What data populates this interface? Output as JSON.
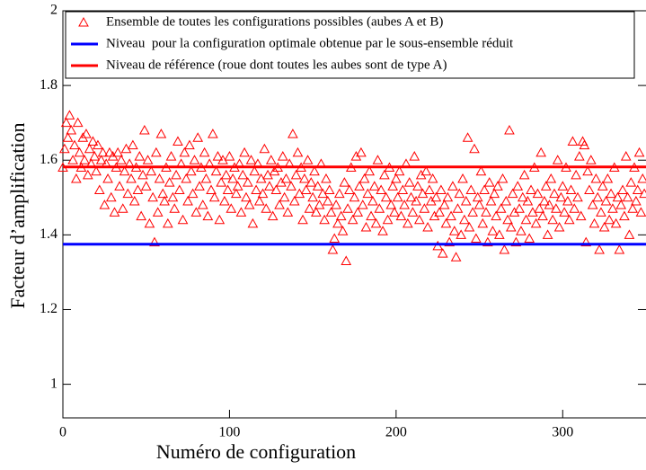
{
  "chart_data": {
    "type": "scatter",
    "xlabel": "Numéro de configuration",
    "ylabel": "Facteur d’amplification",
    "xlim": [
      0,
      350
    ],
    "xticks": [
      0,
      100,
      200,
      300
    ],
    "ylim": [
      0.91,
      2
    ],
    "yticks": [
      1,
      1.2,
      1.4,
      1.6,
      1.8,
      2
    ],
    "legend": "upper left",
    "series": [
      {
        "name": "Ensemble de toutes les configurations possibles (aubes A et B)",
        "color": "#ff0000",
        "marker": "triangle",
        "x": [
          0,
          1,
          2,
          3,
          4,
          5,
          6,
          7,
          8,
          9,
          10,
          11,
          12,
          13,
          14,
          15,
          16,
          17,
          18,
          19,
          20,
          21,
          22,
          23,
          24,
          25,
          26,
          27,
          28,
          29,
          30,
          31,
          32,
          33,
          34,
          35,
          36,
          37,
          38,
          39,
          40,
          41,
          42,
          43,
          44,
          45,
          46,
          47,
          48,
          49,
          50,
          51,
          52,
          53,
          54,
          55,
          56,
          57,
          58,
          59,
          60,
          61,
          62,
          63,
          64,
          65,
          66,
          67,
          68,
          69,
          70,
          71,
          72,
          73,
          74,
          75,
          76,
          77,
          78,
          79,
          80,
          81,
          82,
          83,
          84,
          85,
          86,
          87,
          88,
          89,
          90,
          91,
          92,
          93,
          94,
          95,
          96,
          97,
          98,
          99,
          100,
          101,
          102,
          103,
          104,
          105,
          106,
          107,
          108,
          109,
          110,
          111,
          112,
          113,
          114,
          115,
          116,
          117,
          118,
          119,
          120,
          121,
          122,
          123,
          124,
          125,
          126,
          127,
          128,
          129,
          130,
          131,
          132,
          133,
          134,
          135,
          136,
          137,
          138,
          139,
          140,
          141,
          142,
          143,
          144,
          145,
          146,
          147,
          148,
          149,
          150,
          151,
          152,
          153,
          154,
          155,
          156,
          157,
          158,
          159,
          160,
          161,
          162,
          163,
          164,
          165,
          166,
          167,
          168,
          169,
          170,
          171,
          172,
          173,
          174,
          175,
          176,
          177,
          178,
          179,
          180,
          181,
          182,
          183,
          184,
          185,
          186,
          187,
          188,
          189,
          190,
          191,
          192,
          193,
          194,
          195,
          196,
          197,
          198,
          199,
          200,
          201,
          202,
          203,
          204,
          205,
          206,
          207,
          208,
          209,
          210,
          211,
          212,
          213,
          214,
          215,
          216,
          217,
          218,
          219,
          220,
          221,
          222,
          223,
          224,
          225,
          226,
          227,
          228,
          229,
          230,
          231,
          232,
          233,
          234,
          235,
          236,
          237,
          238,
          239,
          240,
          241,
          242,
          243,
          244,
          245,
          246,
          247,
          248,
          249,
          250,
          251,
          252,
          253,
          254,
          255,
          256,
          257,
          258,
          259,
          260,
          261,
          262,
          263,
          264,
          265,
          266,
          267,
          268,
          269,
          270,
          271,
          272,
          273,
          274,
          275,
          276,
          277,
          278,
          279,
          280,
          281,
          282,
          283,
          284,
          285,
          286,
          287,
          288,
          289,
          290,
          291,
          292,
          293,
          294,
          295,
          296,
          297,
          298,
          299,
          300,
          301,
          302,
          303,
          304,
          305,
          306,
          307,
          308,
          309,
          310,
          311,
          312,
          313,
          314,
          315,
          316,
          317,
          318,
          319,
          320,
          321,
          322,
          323,
          324,
          325,
          326,
          327,
          328,
          329,
          330,
          331,
          332,
          333,
          334,
          335,
          336,
          337,
          338,
          339,
          340,
          341,
          342,
          343,
          344,
          345,
          346,
          347,
          348,
          349
        ],
        "values": [
          1.58,
          1.63,
          1.7,
          1.66,
          1.72,
          1.68,
          1.6,
          1.64,
          1.55,
          1.7,
          1.62,
          1.58,
          1.66,
          1.6,
          1.67,
          1.56,
          1.63,
          1.59,
          1.65,
          1.61,
          1.57,
          1.64,
          1.52,
          1.6,
          1.62,
          1.48,
          1.59,
          1.55,
          1.62,
          1.5,
          1.61,
          1.46,
          1.58,
          1.62,
          1.53,
          1.6,
          1.47,
          1.57,
          1.63,
          1.51,
          1.59,
          1.55,
          1.64,
          1.49,
          1.58,
          1.52,
          1.61,
          1.45,
          1.56,
          1.68,
          1.53,
          1.6,
          1.43,
          1.57,
          1.5,
          1.38,
          1.62,
          1.46,
          1.55,
          1.67,
          1.51,
          1.49,
          1.58,
          1.43,
          1.54,
          1.61,
          1.5,
          1.47,
          1.56,
          1.65,
          1.52,
          1.59,
          1.44,
          1.62,
          1.55,
          1.49,
          1.64,
          1.57,
          1.51,
          1.6,
          1.46,
          1.66,
          1.53,
          1.58,
          1.48,
          1.62,
          1.55,
          1.45,
          1.59,
          1.52,
          1.67,
          1.5,
          1.57,
          1.61,
          1.44,
          1.54,
          1.6,
          1.49,
          1.56,
          1.52,
          1.61,
          1.47,
          1.55,
          1.58,
          1.51,
          1.53,
          1.59,
          1.46,
          1.56,
          1.62,
          1.5,
          1.54,
          1.48,
          1.6,
          1.43,
          1.57,
          1.52,
          1.59,
          1.49,
          1.55,
          1.51,
          1.63,
          1.47,
          1.56,
          1.53,
          1.6,
          1.45,
          1.57,
          1.52,
          1.58,
          1.48,
          1.54,
          1.61,
          1.5,
          1.55,
          1.46,
          1.59,
          1.53,
          1.67,
          1.49,
          1.56,
          1.62,
          1.51,
          1.58,
          1.44,
          1.55,
          1.52,
          1.6,
          1.47,
          1.54,
          1.5,
          1.57,
          1.46,
          1.53,
          1.48,
          1.59,
          1.51,
          1.44,
          1.55,
          1.49,
          1.52,
          1.46,
          1.36,
          1.39,
          1.48,
          1.43,
          1.51,
          1.45,
          1.41,
          1.54,
          1.33,
          1.47,
          1.52,
          1.58,
          1.44,
          1.5,
          1.61,
          1.46,
          1.53,
          1.62,
          1.48,
          1.55,
          1.42,
          1.51,
          1.57,
          1.45,
          1.49,
          1.53,
          1.43,
          1.6,
          1.47,
          1.52,
          1.41,
          1.56,
          1.5,
          1.44,
          1.58,
          1.48,
          1.53,
          1.46,
          1.55,
          1.5,
          1.57,
          1.45,
          1.52,
          1.48,
          1.59,
          1.43,
          1.54,
          1.5,
          1.46,
          1.61,
          1.49,
          1.53,
          1.44,
          1.56,
          1.51,
          1.47,
          1.57,
          1.42,
          1.52,
          1.49,
          1.55,
          1.45,
          1.5,
          1.37,
          1.46,
          1.52,
          1.35,
          1.48,
          1.43,
          1.5,
          1.38,
          1.45,
          1.53,
          1.41,
          1.34,
          1.47,
          1.51,
          1.4,
          1.55,
          1.44,
          1.49,
          1.66,
          1.42,
          1.52,
          1.46,
          1.63,
          1.39,
          1.5,
          1.48,
          1.57,
          1.43,
          1.52,
          1.46,
          1.38,
          1.54,
          1.49,
          1.41,
          1.51,
          1.45,
          1.53,
          1.4,
          1.47,
          1.55,
          1.36,
          1.49,
          1.44,
          1.68,
          1.42,
          1.51,
          1.46,
          1.38,
          1.53,
          1.47,
          1.41,
          1.5,
          1.56,
          1.44,
          1.49,
          1.39,
          1.52,
          1.46,
          1.58,
          1.43,
          1.51,
          1.47,
          1.62,
          1.45,
          1.49,
          1.53,
          1.4,
          1.48,
          1.55,
          1.44,
          1.51,
          1.47,
          1.6,
          1.42,
          1.5,
          1.53,
          1.46,
          1.58,
          1.49,
          1.44,
          1.52,
          1.65,
          1.47,
          1.56,
          1.5,
          1.61,
          1.45,
          1.65,
          1.64,
          1.38,
          1.57,
          1.52,
          1.6,
          1.48,
          1.43,
          1.55,
          1.5,
          1.36,
          1.46,
          1.53,
          1.42,
          1.49,
          1.55,
          1.44,
          1.51,
          1.47,
          1.58,
          1.43,
          1.5,
          1.36,
          1.48,
          1.52,
          1.45,
          1.61,
          1.5,
          1.4,
          1.54,
          1.47,
          1.58,
          1.49,
          1.52,
          1.62,
          1.46,
          1.55,
          1.51
        ]
      },
      {
        "name": "Niveau  pour la configuration optimale obtenue par le sous-ensemble réduit",
        "color": "#0000ff",
        "marker": "hline",
        "values": [
          1.375
        ]
      },
      {
        "name": "Niveau de référence (roue dont toutes les aubes sont de type A)",
        "color": "#ff0000",
        "marker": "hline",
        "values": [
          1.582
        ]
      }
    ]
  }
}
